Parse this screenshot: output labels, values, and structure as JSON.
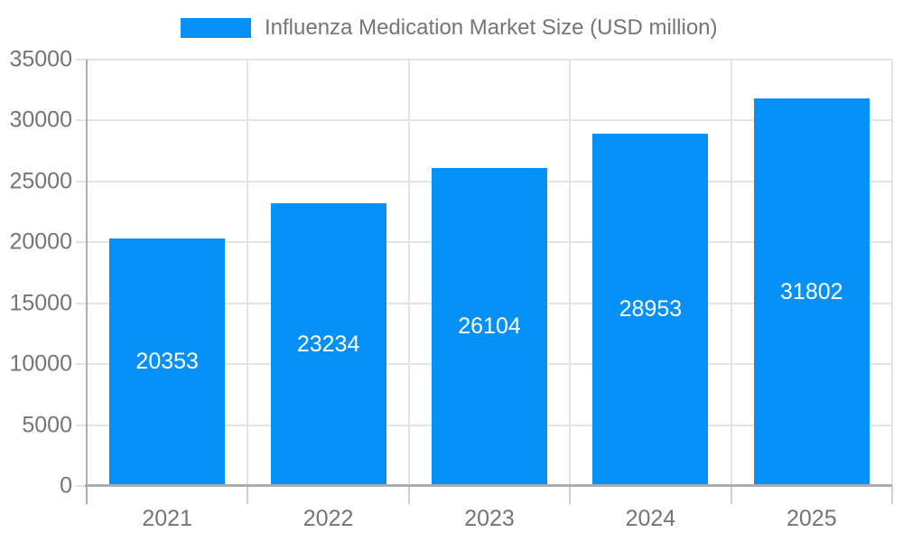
{
  "colors": {
    "bar": "#0590f8",
    "grid": "#e4e4e4",
    "axis": "#adadad",
    "tick": "#cfcfcf",
    "text": "#757575",
    "bar_label": "#ffffff",
    "background": "#ffffff"
  },
  "legend": {
    "label": "Influenza Medication Market Size (USD million)"
  },
  "chart_data": {
    "type": "bar",
    "title": "Influenza Medication Market Size (USD million)",
    "categories": [
      "2021",
      "2022",
      "2023",
      "2024",
      "2025"
    ],
    "values": [
      20353,
      23234,
      26104,
      28953,
      31802
    ],
    "value_labels": [
      "20353",
      "23234",
      "26104",
      "28953",
      "31802"
    ],
    "xlabel": "",
    "ylabel": "",
    "ylim": [
      0,
      35000
    ],
    "ytick_interval": 5000,
    "yticks": [
      0,
      5000,
      10000,
      15000,
      20000,
      25000,
      30000,
      35000
    ],
    "ytick_labels": [
      "0",
      "5000",
      "10000",
      "15000",
      "20000",
      "25000",
      "30000",
      "35000"
    ],
    "grid": true,
    "legend_position": "top-center",
    "bar_value_labels": "inside-center-white"
  }
}
